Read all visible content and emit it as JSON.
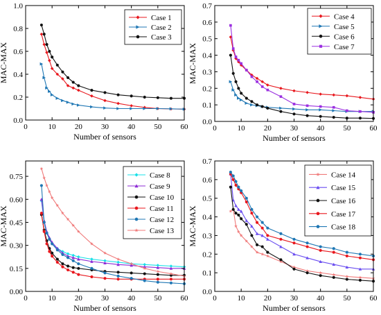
{
  "figure": {
    "panel_order": [
      "top-left",
      "top-right",
      "bottom-left",
      "bottom-right"
    ]
  },
  "chart_data": [
    {
      "type": "line",
      "xlabel": "Number of sensors",
      "ylabel": "MAC-MAX",
      "xlim": [
        0,
        60
      ],
      "ylim": [
        0,
        1.0
      ],
      "xticks": [
        0,
        10,
        20,
        30,
        40,
        50,
        60
      ],
      "yticks": [
        0.0,
        0.2,
        0.4,
        0.6,
        0.8,
        1.0
      ],
      "yticklabels": [
        "0.0",
        "0.2",
        "0.4",
        "0.6",
        "0.8",
        "1.0"
      ],
      "grid": false,
      "legend_position": "top-right",
      "series": [
        {
          "name": "Case 1",
          "color": "#e8171d",
          "marker": "diamond",
          "x": [
            6,
            7,
            8,
            9,
            10,
            12,
            14,
            16,
            18,
            20,
            25,
            30,
            35,
            40,
            45,
            50,
            55,
            60
          ],
          "values": [
            0.75,
            0.66,
            0.59,
            0.52,
            0.45,
            0.4,
            0.36,
            0.3,
            0.28,
            0.26,
            0.21,
            0.17,
            0.145,
            0.125,
            0.11,
            0.1,
            0.097,
            0.095
          ]
        },
        {
          "name": "Case 2",
          "color": "#1f77b4",
          "marker": "triangle-right",
          "x": [
            6,
            7,
            8,
            9,
            10,
            12,
            14,
            16,
            18,
            20,
            25,
            30,
            35,
            40,
            45,
            50,
            55,
            60
          ],
          "values": [
            0.49,
            0.37,
            0.28,
            0.25,
            0.22,
            0.19,
            0.17,
            0.155,
            0.14,
            0.13,
            0.115,
            0.105,
            0.1,
            0.1,
            0.1,
            0.1,
            0.098,
            0.095
          ]
        },
        {
          "name": "Case 3",
          "color": "#111111",
          "marker": "circle",
          "x": [
            6,
            7,
            8,
            9,
            10,
            12,
            14,
            16,
            18,
            20,
            25,
            30,
            35,
            40,
            45,
            50,
            55,
            60
          ],
          "values": [
            0.83,
            0.75,
            0.66,
            0.6,
            0.55,
            0.48,
            0.42,
            0.37,
            0.33,
            0.3,
            0.26,
            0.24,
            0.22,
            0.21,
            0.2,
            0.195,
            0.19,
            0.19
          ]
        }
      ]
    },
    {
      "type": "line",
      "xlabel": "Number of sensors",
      "ylabel": "MAC-MAX",
      "xlim": [
        0,
        60
      ],
      "ylim": [
        0,
        0.7
      ],
      "xticks": [
        0,
        10,
        20,
        30,
        40,
        50,
        60
      ],
      "yticks": [
        0.0,
        0.1,
        0.2,
        0.3,
        0.4,
        0.5,
        0.6,
        0.7
      ],
      "yticklabels": [
        "0.0",
        "0.1",
        "0.2",
        "0.3",
        "0.4",
        "0.5",
        "0.6",
        "0.7"
      ],
      "grid": false,
      "legend_position": "top-right",
      "series": [
        {
          "name": "Case 4",
          "color": "#e8171d",
          "marker": "diamond",
          "x": [
            6,
            7,
            8,
            9,
            10,
            12,
            14,
            16,
            18,
            20,
            25,
            30,
            35,
            40,
            45,
            50,
            55,
            60
          ],
          "values": [
            0.51,
            0.43,
            0.38,
            0.36,
            0.34,
            0.31,
            0.28,
            0.26,
            0.24,
            0.22,
            0.2,
            0.185,
            0.175,
            0.165,
            0.16,
            0.155,
            0.145,
            0.135
          ]
        },
        {
          "name": "Case 5",
          "color": "#1f77b4",
          "marker": "triangle-right",
          "x": [
            6,
            7,
            8,
            9,
            10,
            12,
            14,
            16,
            18,
            20,
            25,
            30,
            35,
            40,
            45,
            50,
            55,
            60
          ],
          "values": [
            0.24,
            0.19,
            0.16,
            0.14,
            0.13,
            0.11,
            0.1,
            0.095,
            0.09,
            0.085,
            0.08,
            0.075,
            0.07,
            0.07,
            0.065,
            0.06,
            0.06,
            0.06
          ]
        },
        {
          "name": "Case 6",
          "color": "#111111",
          "marker": "circle",
          "x": [
            6,
            7,
            8,
            9,
            10,
            12,
            14,
            16,
            18,
            20,
            25,
            30,
            35,
            40,
            45,
            50,
            55,
            60
          ],
          "values": [
            0.4,
            0.29,
            0.24,
            0.2,
            0.17,
            0.14,
            0.12,
            0.1,
            0.09,
            0.08,
            0.06,
            0.045,
            0.035,
            0.03,
            0.025,
            0.02,
            0.02,
            0.018
          ]
        },
        {
          "name": "Case 7",
          "color": "#9b30e0",
          "marker": "square",
          "x": [
            6,
            7,
            8,
            9,
            10,
            12,
            14,
            16,
            18,
            20,
            25,
            30,
            35,
            40,
            45,
            50,
            55,
            60
          ],
          "values": [
            0.58,
            0.44,
            0.39,
            0.37,
            0.35,
            0.31,
            0.27,
            0.24,
            0.21,
            0.19,
            0.15,
            0.105,
            0.095,
            0.09,
            0.085,
            0.065,
            0.06,
            0.055
          ]
        }
      ]
    },
    {
      "type": "line",
      "xlabel": "Number of sensors",
      "ylabel": "MAC-MAX",
      "xlim": [
        0,
        60
      ],
      "ylim": [
        0,
        0.85
      ],
      "xticks": [
        0,
        10,
        20,
        30,
        40,
        50,
        60
      ],
      "yticks": [
        0.0,
        0.15,
        0.3,
        0.45,
        0.6,
        0.75
      ],
      "yticklabels": [
        "0.00",
        "0.15",
        "0.30",
        "0.45",
        "0.60",
        "0.75"
      ],
      "grid": false,
      "legend_position": "top-right",
      "series": [
        {
          "name": "Case 8",
          "color": "#18e0e8",
          "marker": "diamond",
          "x": [
            6,
            7,
            8,
            9,
            10,
            12,
            14,
            16,
            18,
            20,
            25,
            30,
            35,
            40,
            45,
            50,
            55,
            60
          ],
          "values": [
            0.59,
            0.45,
            0.38,
            0.34,
            0.31,
            0.28,
            0.26,
            0.245,
            0.235,
            0.225,
            0.21,
            0.2,
            0.19,
            0.18,
            0.175,
            0.17,
            0.165,
            0.16
          ]
        },
        {
          "name": "Case 9",
          "color": "#8e2bd6",
          "marker": "triangle-up",
          "x": [
            6,
            7,
            8,
            9,
            10,
            12,
            14,
            16,
            18,
            20,
            25,
            30,
            35,
            40,
            45,
            50,
            55,
            60
          ],
          "values": [
            0.6,
            0.46,
            0.39,
            0.35,
            0.32,
            0.28,
            0.25,
            0.23,
            0.22,
            0.21,
            0.195,
            0.185,
            0.175,
            0.17,
            0.16,
            0.155,
            0.15,
            0.15
          ]
        },
        {
          "name": "Case 10",
          "color": "#111111",
          "marker": "circle",
          "x": [
            6,
            7,
            8,
            9,
            10,
            12,
            14,
            16,
            18,
            20,
            25,
            30,
            35,
            40,
            45,
            50,
            55,
            60
          ],
          "values": [
            0.5,
            0.4,
            0.33,
            0.28,
            0.25,
            0.21,
            0.18,
            0.165,
            0.155,
            0.15,
            0.14,
            0.13,
            0.125,
            0.12,
            0.115,
            0.11,
            0.105,
            0.105
          ]
        },
        {
          "name": "Case 11",
          "color": "#e8171d",
          "marker": "circle",
          "x": [
            6,
            7,
            8,
            9,
            10,
            12,
            14,
            16,
            18,
            20,
            25,
            30,
            35,
            40,
            45,
            50,
            55,
            60
          ],
          "values": [
            0.51,
            0.39,
            0.31,
            0.26,
            0.23,
            0.19,
            0.16,
            0.14,
            0.125,
            0.11,
            0.095,
            0.085,
            0.08,
            0.08,
            0.08,
            0.08,
            0.08,
            0.08
          ]
        },
        {
          "name": "Case 12",
          "color": "#1f77b4",
          "marker": "circle",
          "x": [
            6,
            7,
            8,
            9,
            10,
            12,
            14,
            16,
            18,
            20,
            25,
            30,
            35,
            40,
            45,
            50,
            55,
            60
          ],
          "values": [
            0.69,
            0.45,
            0.38,
            0.34,
            0.31,
            0.27,
            0.24,
            0.22,
            0.2,
            0.18,
            0.15,
            0.12,
            0.1,
            0.085,
            0.07,
            0.06,
            0.055,
            0.05
          ]
        },
        {
          "name": "Case 13",
          "color": "#f07a7a",
          "marker": "star",
          "x": [
            6,
            7,
            8,
            9,
            10,
            12,
            14,
            16,
            18,
            20,
            25,
            30,
            35,
            40,
            45,
            50,
            55,
            60
          ],
          "values": [
            0.8,
            0.74,
            0.69,
            0.65,
            0.61,
            0.56,
            0.51,
            0.47,
            0.43,
            0.39,
            0.31,
            0.25,
            0.21,
            0.18,
            0.15,
            0.13,
            0.115,
            0.1
          ]
        }
      ]
    },
    {
      "type": "line",
      "xlabel": "Number of sensors",
      "ylabel": "MAC-MAX",
      "xlim": [
        0,
        60
      ],
      "ylim": [
        0,
        0.7
      ],
      "xticks": [
        0,
        10,
        20,
        30,
        40,
        50,
        60
      ],
      "yticks": [
        0.0,
        0.1,
        0.2,
        0.3,
        0.4,
        0.5,
        0.6,
        0.7
      ],
      "yticklabels": [
        "0.0",
        "0.1",
        "0.2",
        "0.3",
        "0.4",
        "0.5",
        "0.6",
        "0.7"
      ],
      "grid": false,
      "legend_position": "top-right",
      "series": [
        {
          "name": "Case 14",
          "color": "#f07a7a",
          "marker": "star",
          "x": [
            6,
            7,
            8,
            9,
            10,
            12,
            14,
            16,
            18,
            20,
            25,
            30,
            35,
            40,
            45,
            50,
            55,
            60
          ],
          "values": [
            0.43,
            0.44,
            0.35,
            0.32,
            0.3,
            0.27,
            0.24,
            0.21,
            0.2,
            0.19,
            0.16,
            0.13,
            0.11,
            0.1,
            0.09,
            0.08,
            0.075,
            0.07
          ]
        },
        {
          "name": "Case 15",
          "color": "#6a4df0",
          "marker": "triangle-up",
          "x": [
            6,
            7,
            8,
            9,
            10,
            12,
            14,
            16,
            18,
            20,
            25,
            30,
            35,
            40,
            45,
            50,
            55,
            60
          ],
          "values": [
            0.63,
            0.49,
            0.46,
            0.44,
            0.43,
            0.38,
            0.35,
            0.31,
            0.3,
            0.28,
            0.24,
            0.2,
            0.18,
            0.16,
            0.145,
            0.13,
            0.12,
            0.12
          ]
        },
        {
          "name": "Case 16",
          "color": "#111111",
          "marker": "circle",
          "x": [
            6,
            7,
            8,
            9,
            10,
            12,
            14,
            16,
            18,
            20,
            25,
            30,
            35,
            40,
            45,
            50,
            55,
            60
          ],
          "values": [
            0.56,
            0.44,
            0.42,
            0.41,
            0.39,
            0.36,
            0.3,
            0.25,
            0.24,
            0.21,
            0.17,
            0.12,
            0.1,
            0.085,
            0.075,
            0.065,
            0.06,
            0.055
          ]
        },
        {
          "name": "Case 17",
          "color": "#e8171d",
          "marker": "circle",
          "x": [
            6,
            7,
            8,
            9,
            10,
            12,
            14,
            16,
            18,
            20,
            25,
            30,
            35,
            40,
            45,
            50,
            55,
            60
          ],
          "values": [
            0.63,
            0.6,
            0.57,
            0.55,
            0.53,
            0.48,
            0.42,
            0.37,
            0.34,
            0.3,
            0.28,
            0.26,
            0.24,
            0.22,
            0.21,
            0.19,
            0.18,
            0.17
          ]
        },
        {
          "name": "Case 18",
          "color": "#1f77b4",
          "marker": "circle",
          "x": [
            6,
            7,
            8,
            9,
            10,
            12,
            14,
            16,
            18,
            20,
            25,
            30,
            35,
            40,
            45,
            50,
            55,
            60
          ],
          "values": [
            0.64,
            0.62,
            0.59,
            0.56,
            0.54,
            0.5,
            0.44,
            0.4,
            0.37,
            0.34,
            0.31,
            0.28,
            0.26,
            0.24,
            0.23,
            0.21,
            0.2,
            0.19
          ]
        }
      ]
    }
  ]
}
